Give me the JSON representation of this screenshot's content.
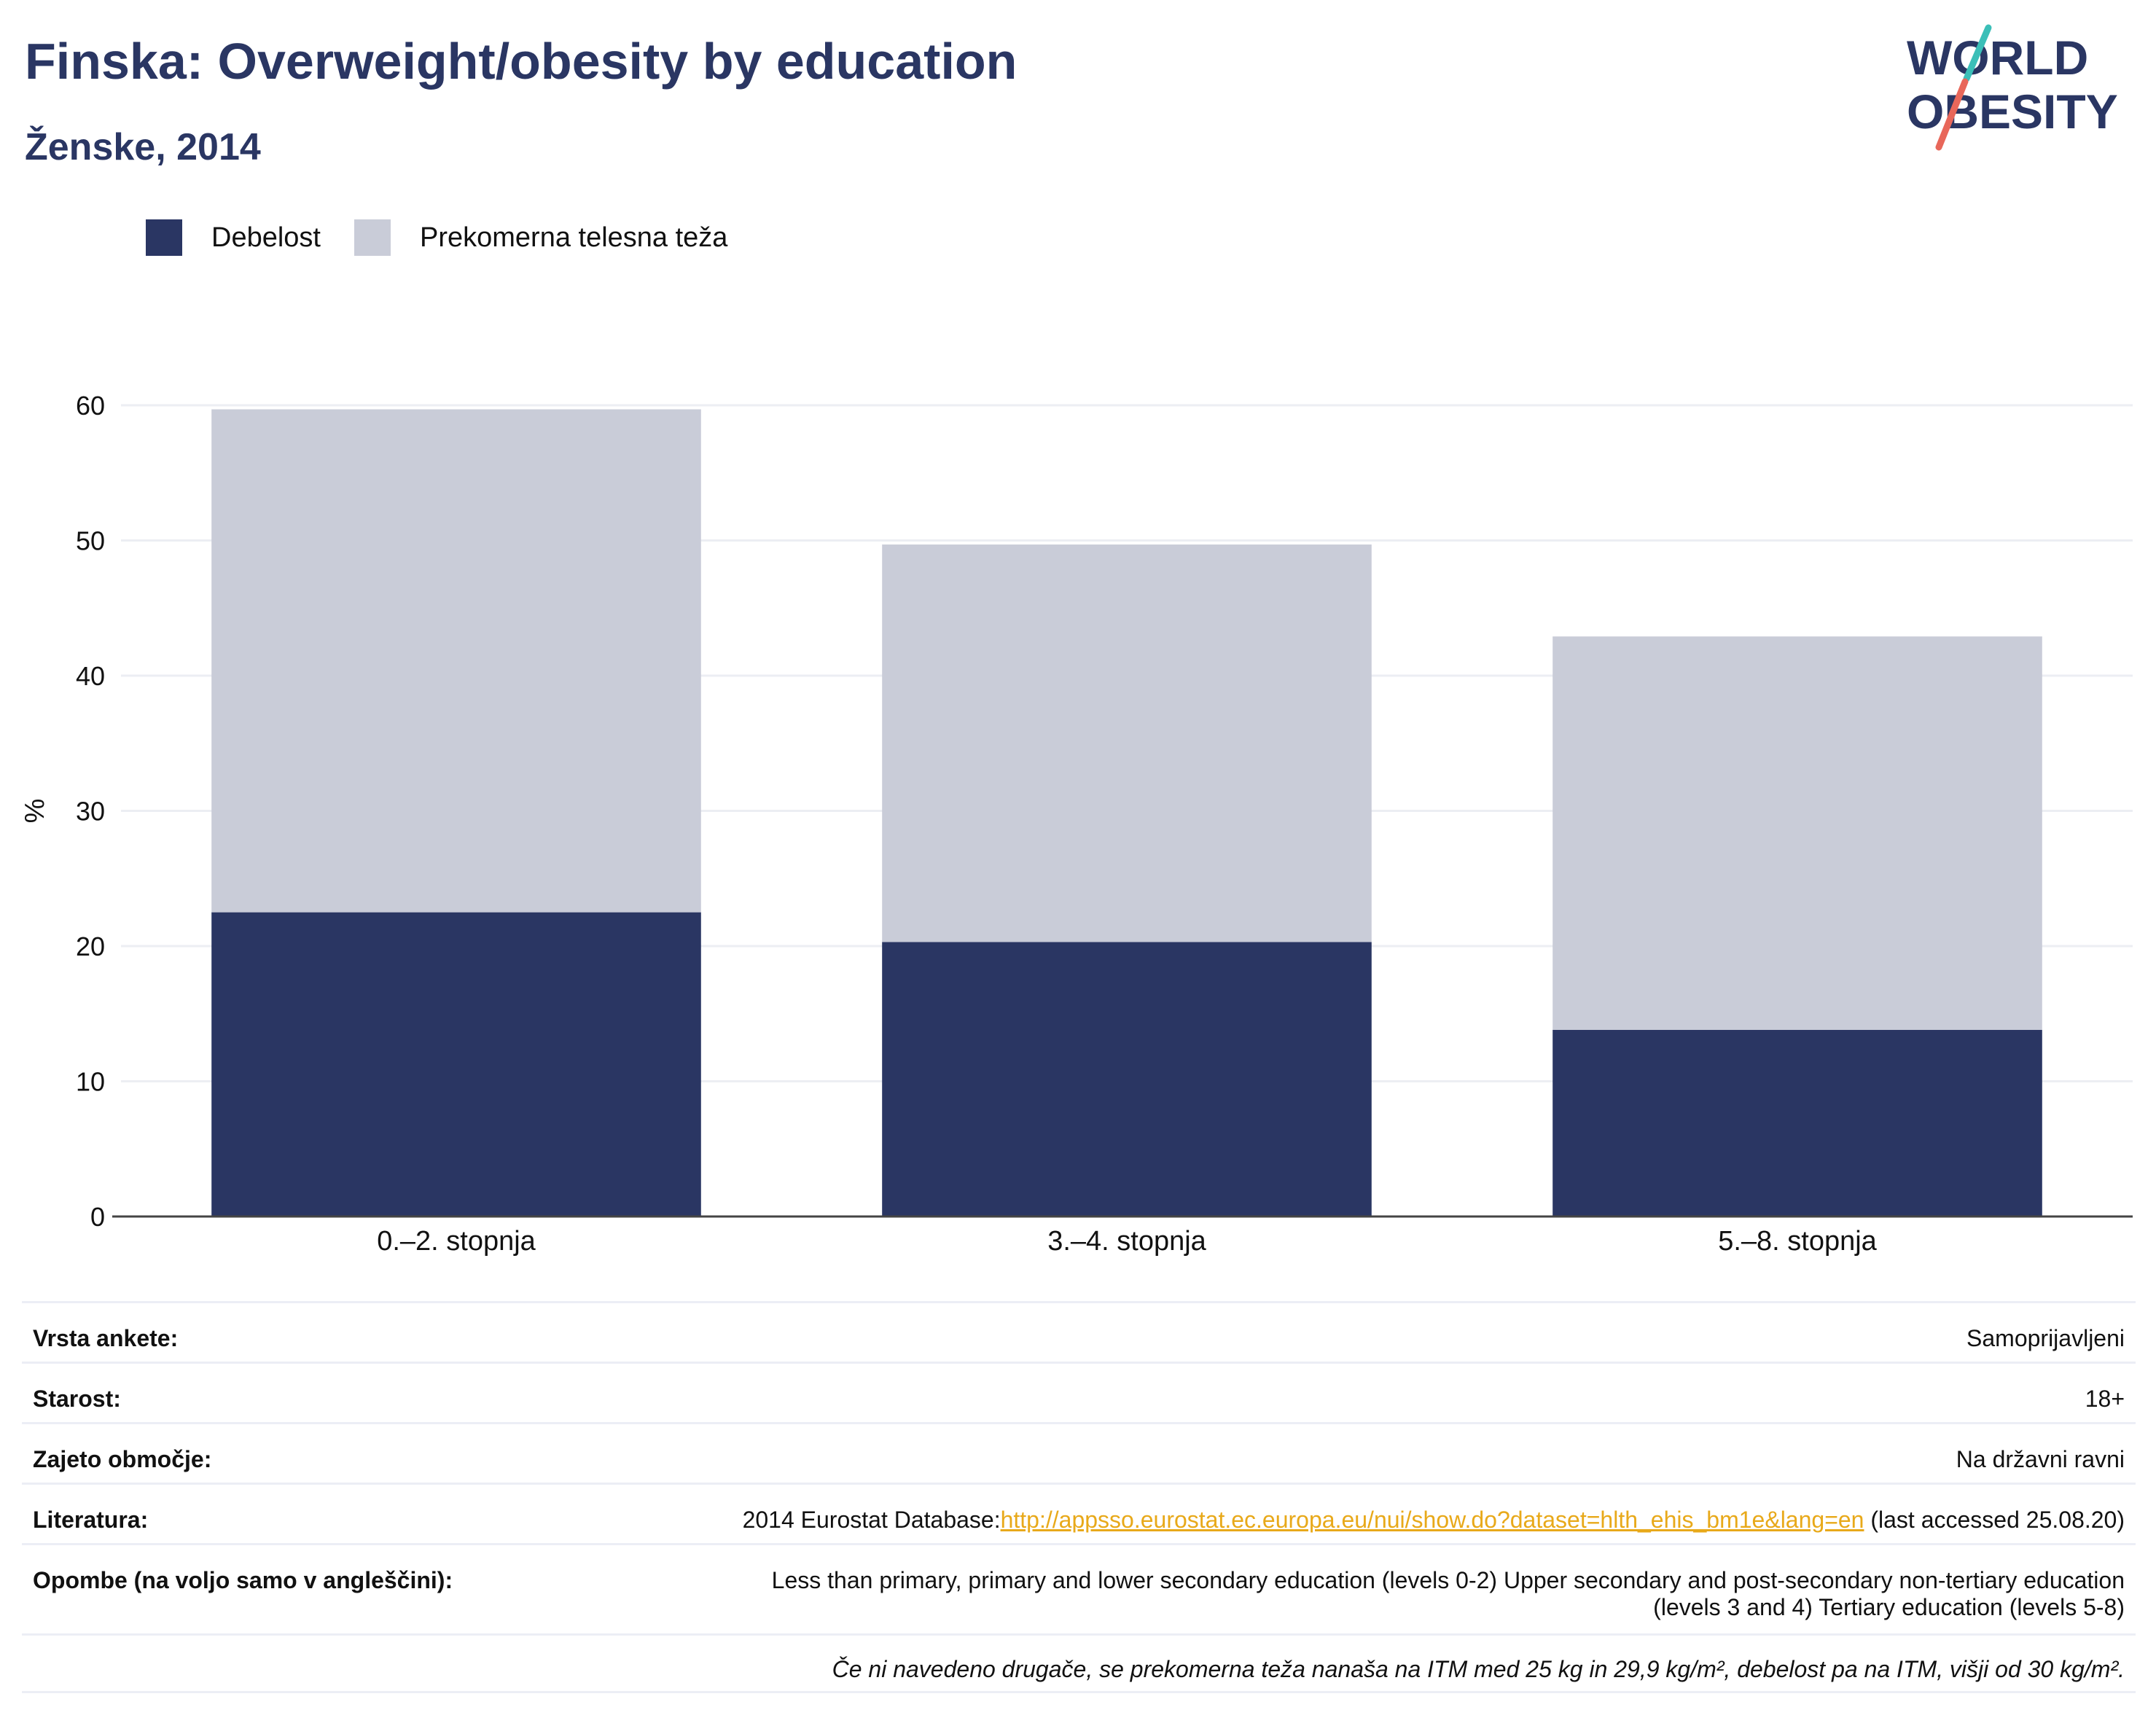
{
  "header": {
    "title": "Finska: Overweight/obesity by education",
    "subtitle": "Ženske, 2014"
  },
  "logo": {
    "line1": "WORLD",
    "line2": "OBESITY"
  },
  "colors": {
    "obesity": "#2a3663",
    "overweight": "#c9ccd8",
    "accent_teal": "#3bbfb8",
    "accent_red": "#e8675a",
    "link": "#e8a91a"
  },
  "chart_data": {
    "type": "bar",
    "stacked": true,
    "categories": [
      "0.–2. stopnja",
      "3.–4. stopnja",
      "5.–8. stopnja"
    ],
    "series": [
      {
        "name": "Debelost",
        "values": [
          22.5,
          20.3,
          13.8
        ]
      },
      {
        "name": "Prekomerna telesna teža",
        "values": [
          37.2,
          29.4,
          29.1
        ]
      }
    ],
    "title": "Finska: Overweight/obesity by education",
    "ylabel": "%",
    "ylim": [
      0,
      60
    ],
    "yticks": [
      0,
      10,
      20,
      30,
      40,
      50,
      60
    ],
    "grid": true,
    "legend": "top-left"
  },
  "info": {
    "survey_label": "Vrsta ankete:",
    "survey_value": "Samoprijavljeni",
    "age_label": "Starost:",
    "age_value": "18+",
    "coverage_label": "Zajeto območje:",
    "coverage_value": "Na državni ravni",
    "lit_label": "Literatura:",
    "lit_prefix": "2014 Eurostat Database:",
    "lit_link": "http://appsso.eurostat.ec.europa.eu/nui/show.do?dataset=hlth_ehis_bm1e&lang=en",
    "lit_suffix": " (last accessed 25.08.20)",
    "notes_label": "Opombe (na voljo samo v angleščini):",
    "notes_line1": "Less than primary, primary and lower secondary education (levels 0-2) Upper secondary and post-secondary non-tertiary education",
    "notes_line2": "(levels 3 and 4) Tertiary education (levels 5-8)",
    "footnote": "Če ni navedeno drugače, se prekomerna teža nanaša na ITM med 25 kg in 29,9 kg/m², debelost pa na ITM, višji od 30 kg/m²."
  }
}
